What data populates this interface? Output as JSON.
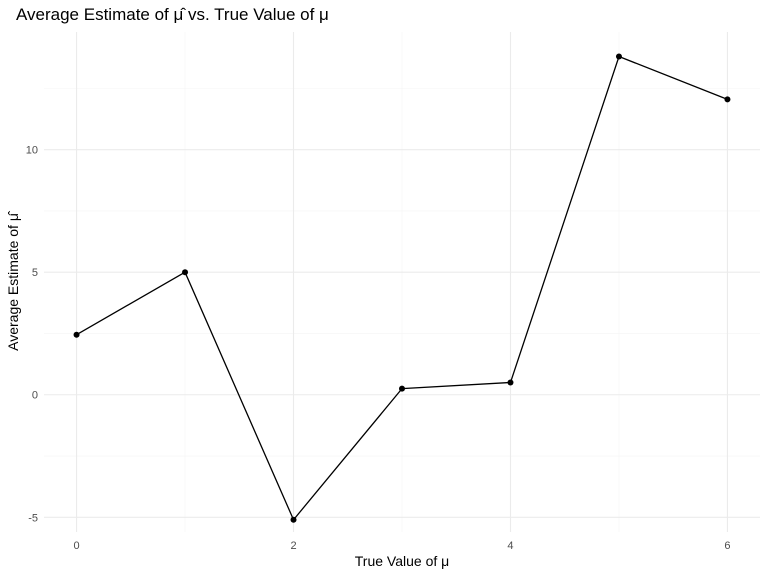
{
  "chart_data": {
    "type": "line",
    "title": "Average Estimate of μ̂ vs. True Value of μ",
    "xlabel": "True Value of μ",
    "ylabel": "Average Estimate of μ̂",
    "x": [
      0,
      1,
      2,
      3,
      4,
      5,
      6
    ],
    "values": [
      2.45,
      5.0,
      -5.1,
      0.25,
      0.5,
      13.8,
      12.05
    ],
    "xlim": [
      -0.3,
      6.3
    ],
    "ylim": [
      -5.6,
      14.8
    ],
    "x_ticks": [
      0,
      2,
      4,
      6
    ],
    "y_ticks": [
      -5,
      0,
      5,
      10
    ],
    "x_tick_labels": [
      "0",
      "2",
      "4",
      "6"
    ],
    "y_tick_labels": [
      "-5",
      "0",
      "5",
      "10"
    ],
    "grid": true,
    "legend": "none",
    "colors": {
      "line": "#000000",
      "point": "#000000",
      "grid": "#ebebeb",
      "background": "#ffffff"
    }
  }
}
